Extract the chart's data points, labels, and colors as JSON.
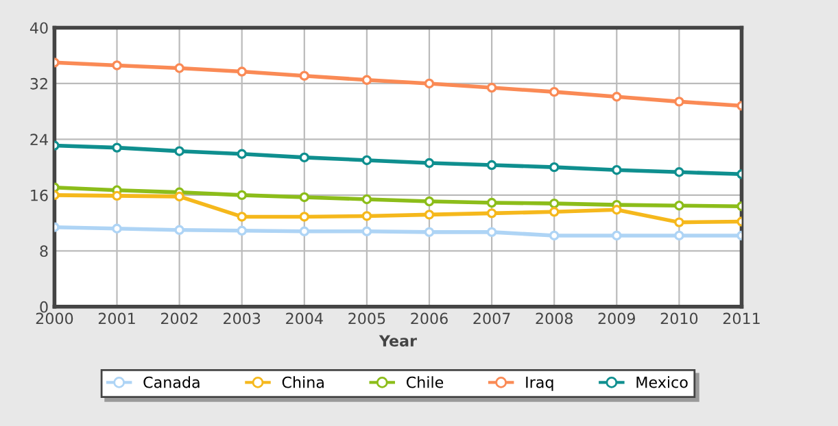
{
  "chart_data": {
    "type": "line",
    "xlabel": "Year",
    "x": [
      2000,
      2001,
      2002,
      2003,
      2004,
      2005,
      2006,
      2007,
      2008,
      2009,
      2010,
      2011
    ],
    "xlim": [
      2000,
      2011
    ],
    "xticks": [
      2000,
      2001,
      2002,
      2003,
      2004,
      2005,
      2006,
      2007,
      2008,
      2009,
      2010,
      2011
    ],
    "ylim": [
      0,
      40
    ],
    "yticks": [
      0,
      8,
      16,
      24,
      32,
      40
    ],
    "grid": true,
    "legend": "bottom",
    "marker": "circle",
    "line_style": "solid",
    "series": [
      {
        "name": "Canada",
        "color": "#aed4f5",
        "values": [
          11.4,
          11.2,
          11.0,
          10.9,
          10.8,
          10.8,
          10.7,
          10.7,
          10.2,
          10.2,
          10.2,
          10.2
        ]
      },
      {
        "name": "China",
        "color": "#f5b81c",
        "values": [
          16.0,
          15.9,
          15.8,
          12.9,
          12.9,
          13.0,
          13.2,
          13.4,
          13.6,
          13.9,
          12.1,
          12.2
        ]
      },
      {
        "name": "Chile",
        "color": "#8cbd1a",
        "values": [
          17.1,
          16.7,
          16.4,
          16.0,
          15.7,
          15.4,
          15.1,
          14.9,
          14.8,
          14.6,
          14.5,
          14.4
        ]
      },
      {
        "name": "Iraq",
        "color": "#fa8a55",
        "values": [
          35.0,
          34.6,
          34.2,
          33.7,
          33.1,
          32.5,
          32.0,
          31.4,
          30.8,
          30.1,
          29.4,
          28.8
        ]
      },
      {
        "name": "Mexico",
        "color": "#0f8f8f",
        "values": [
          23.1,
          22.8,
          22.3,
          21.9,
          21.4,
          21.0,
          20.6,
          20.3,
          20.0,
          19.6,
          19.3,
          19.0
        ]
      }
    ]
  }
}
